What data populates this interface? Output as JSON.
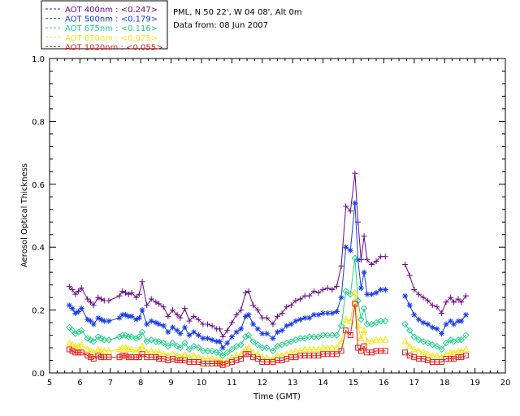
{
  "header": {
    "site": "PML, N 50 22', W 04 08', Alt 0m",
    "date": "Data from: 08 Jun 2007"
  },
  "chart_data": {
    "type": "line",
    "xlabel": "Time (GMT)",
    "ylabel": "Aerosol Optical Thickness",
    "xlim": [
      5,
      20
    ],
    "ylim": [
      0.0,
      1.0
    ],
    "xticks": [
      "5",
      "6",
      "7",
      "8",
      "9",
      "10",
      "11",
      "12",
      "13",
      "14",
      "15",
      "16",
      "17",
      "18",
      "19",
      "20"
    ],
    "yticks": [
      "0.0",
      "0.2",
      "0.4",
      "0.6",
      "0.8",
      "1.0"
    ],
    "legend_position": "top-left",
    "x": [
      5.65,
      5.75,
      5.85,
      5.95,
      6.05,
      6.25,
      6.35,
      6.45,
      6.6,
      6.7,
      6.8,
      6.95,
      7.3,
      7.4,
      7.5,
      7.6,
      7.7,
      7.85,
      7.95,
      8.05,
      8.2,
      8.35,
      8.5,
      8.6,
      8.75,
      8.9,
      9.05,
      9.2,
      9.3,
      9.45,
      9.6,
      9.75,
      9.9,
      10.05,
      10.2,
      10.35,
      10.5,
      10.6,
      10.7,
      10.85,
      11.0,
      11.15,
      11.3,
      11.45,
      11.55,
      11.7,
      11.85,
      12.0,
      12.15,
      12.35,
      12.5,
      12.65,
      12.8,
      12.95,
      13.1,
      13.25,
      13.4,
      13.55,
      13.7,
      13.85,
      14.0,
      14.15,
      14.3,
      14.45,
      14.6,
      14.75,
      14.9,
      15.05,
      15.15,
      15.25,
      15.35,
      15.45,
      15.6,
      15.75,
      15.9,
      16.05,
      16.7,
      16.85,
      17.0,
      17.15,
      17.3,
      17.45,
      17.6,
      17.75,
      17.9,
      18.05,
      18.2,
      18.3,
      18.45,
      18.55,
      18.7
    ],
    "series": [
      {
        "name": "AOT  400nm",
        "legend_label": "AOT  400nm : <0.247>",
        "color": "#6a0a8a",
        "marker": "plus",
        "values": [
          0.275,
          0.265,
          0.25,
          0.26,
          0.27,
          0.235,
          0.225,
          0.215,
          0.24,
          0.235,
          0.23,
          0.23,
          0.245,
          0.26,
          0.255,
          0.25,
          0.255,
          0.24,
          0.25,
          0.29,
          0.215,
          0.235,
          0.225,
          0.22,
          0.21,
          0.18,
          0.2,
          0.185,
          0.175,
          0.205,
          0.165,
          0.18,
          0.17,
          0.155,
          0.155,
          0.15,
          0.14,
          0.14,
          0.115,
          0.135,
          0.16,
          0.185,
          0.2,
          0.255,
          0.26,
          0.215,
          0.2,
          0.175,
          0.175,
          0.155,
          0.18,
          0.19,
          0.21,
          0.215,
          0.23,
          0.235,
          0.245,
          0.245,
          0.26,
          0.255,
          0.265,
          0.27,
          0.265,
          0.275,
          0.34,
          0.53,
          0.515,
          0.635,
          0.48,
          0.36,
          0.435,
          0.36,
          0.345,
          0.355,
          0.37,
          0.37,
          0.345,
          0.31,
          0.265,
          0.25,
          0.24,
          0.23,
          0.215,
          0.21,
          0.19,
          0.225,
          0.24,
          0.225,
          0.235,
          0.225,
          0.245
        ]
      },
      {
        "name": "AOT  500nm",
        "legend_label": "AOT  500nm : <0.179>",
        "color": "#1a3bea",
        "marker": "asterisk",
        "values": [
          0.215,
          0.205,
          0.19,
          0.195,
          0.205,
          0.17,
          0.165,
          0.155,
          0.175,
          0.17,
          0.165,
          0.165,
          0.175,
          0.185,
          0.185,
          0.18,
          0.18,
          0.17,
          0.175,
          0.2,
          0.155,
          0.165,
          0.16,
          0.155,
          0.15,
          0.13,
          0.145,
          0.135,
          0.125,
          0.145,
          0.12,
          0.13,
          0.12,
          0.11,
          0.11,
          0.105,
          0.1,
          0.1,
          0.08,
          0.095,
          0.115,
          0.13,
          0.14,
          0.18,
          0.185,
          0.155,
          0.14,
          0.125,
          0.125,
          0.11,
          0.13,
          0.135,
          0.15,
          0.155,
          0.165,
          0.17,
          0.175,
          0.175,
          0.185,
          0.185,
          0.19,
          0.19,
          0.19,
          0.195,
          0.24,
          0.4,
          0.39,
          0.54,
          0.36,
          0.27,
          0.32,
          0.25,
          0.25,
          0.255,
          0.265,
          0.265,
          0.245,
          0.215,
          0.185,
          0.17,
          0.16,
          0.155,
          0.145,
          0.14,
          0.125,
          0.155,
          0.165,
          0.155,
          0.165,
          0.165,
          0.185
        ]
      },
      {
        "name": "AOT  675nm",
        "legend_label": "AOT  675nm : <0.116>",
        "color": "#22d08a",
        "marker": "diamond",
        "values": [
          0.145,
          0.135,
          0.125,
          0.13,
          0.135,
          0.11,
          0.105,
          0.1,
          0.115,
          0.11,
          0.105,
          0.105,
          0.115,
          0.12,
          0.12,
          0.115,
          0.115,
          0.11,
          0.115,
          0.13,
          0.1,
          0.105,
          0.1,
          0.1,
          0.095,
          0.085,
          0.095,
          0.085,
          0.08,
          0.095,
          0.075,
          0.085,
          0.08,
          0.07,
          0.07,
          0.07,
          0.065,
          0.065,
          0.055,
          0.065,
          0.075,
          0.085,
          0.09,
          0.115,
          0.12,
          0.1,
          0.09,
          0.08,
          0.08,
          0.07,
          0.085,
          0.09,
          0.095,
          0.1,
          0.105,
          0.11,
          0.11,
          0.115,
          0.115,
          0.115,
          0.12,
          0.12,
          0.12,
          0.12,
          0.15,
          0.26,
          0.25,
          0.365,
          0.23,
          0.17,
          0.205,
          0.155,
          0.155,
          0.16,
          0.165,
          0.165,
          0.155,
          0.135,
          0.115,
          0.105,
          0.1,
          0.095,
          0.09,
          0.085,
          0.075,
          0.095,
          0.105,
          0.1,
          0.105,
          0.105,
          0.12
        ]
      },
      {
        "name": "AOT  870nm",
        "legend_label": "AOT  870nm : <0.075>",
        "color": "#f2e60e",
        "marker": "triangle",
        "values": [
          0.095,
          0.09,
          0.085,
          0.085,
          0.09,
          0.075,
          0.07,
          0.065,
          0.075,
          0.07,
          0.07,
          0.07,
          0.075,
          0.08,
          0.08,
          0.075,
          0.075,
          0.07,
          0.075,
          0.085,
          0.065,
          0.07,
          0.065,
          0.065,
          0.06,
          0.055,
          0.06,
          0.055,
          0.05,
          0.06,
          0.05,
          0.055,
          0.05,
          0.045,
          0.045,
          0.045,
          0.04,
          0.04,
          0.035,
          0.04,
          0.05,
          0.055,
          0.06,
          0.075,
          0.08,
          0.065,
          0.06,
          0.05,
          0.05,
          0.045,
          0.055,
          0.055,
          0.06,
          0.065,
          0.07,
          0.07,
          0.075,
          0.075,
          0.075,
          0.075,
          0.08,
          0.08,
          0.08,
          0.08,
          0.1,
          0.17,
          0.165,
          0.255,
          0.15,
          0.11,
          0.135,
          0.1,
          0.1,
          0.105,
          0.105,
          0.105,
          0.1,
          0.085,
          0.075,
          0.07,
          0.065,
          0.06,
          0.055,
          0.055,
          0.05,
          0.06,
          0.065,
          0.065,
          0.07,
          0.07,
          0.075
        ]
      },
      {
        "name": "AOT 1020nm",
        "legend_label": "AOT 1020nm : <0.055>",
        "color": "#e41a1a",
        "marker": "square",
        "values": [
          0.075,
          0.07,
          0.065,
          0.065,
          0.065,
          0.055,
          0.05,
          0.045,
          0.055,
          0.05,
          0.05,
          0.05,
          0.05,
          0.055,
          0.055,
          0.05,
          0.05,
          0.05,
          0.05,
          0.06,
          0.05,
          0.05,
          0.05,
          0.045,
          0.045,
          0.04,
          0.045,
          0.04,
          0.04,
          0.04,
          0.035,
          0.035,
          0.035,
          0.03,
          0.03,
          0.03,
          0.03,
          0.03,
          0.025,
          0.03,
          0.035,
          0.04,
          0.045,
          0.06,
          0.06,
          0.05,
          0.045,
          0.035,
          0.035,
          0.035,
          0.04,
          0.04,
          0.045,
          0.05,
          0.05,
          0.055,
          0.055,
          0.055,
          0.055,
          0.055,
          0.06,
          0.06,
          0.06,
          0.06,
          0.07,
          0.135,
          0.12,
          0.22,
          0.08,
          0.07,
          0.085,
          0.065,
          0.065,
          0.07,
          0.07,
          0.07,
          0.065,
          0.055,
          0.05,
          0.045,
          0.045,
          0.04,
          0.035,
          0.035,
          0.035,
          0.045,
          0.045,
          0.045,
          0.05,
          0.05,
          0.055
        ]
      }
    ]
  }
}
